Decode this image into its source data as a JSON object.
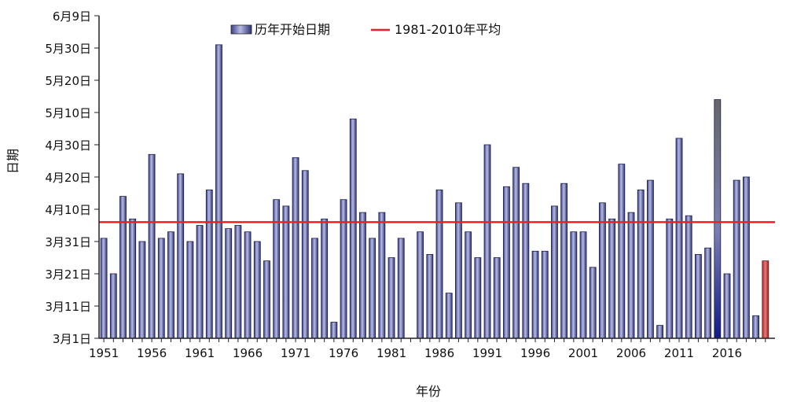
{
  "chart_data": {
    "type": "bar",
    "title": "",
    "xlabel": "年份",
    "ylabel": "日期",
    "legend": {
      "placement": "top-center",
      "bar_label": "历年开始日期",
      "line_label": "1981-2010年平均"
    },
    "y_tick_labels": [
      "3月1日",
      "3月11日",
      "3月21日",
      "3月31日",
      "4月10日",
      "4月20日",
      "4月30日",
      "5月10日",
      "5月20日",
      "5月30日",
      "6月9日"
    ],
    "x_tick_labels": [
      "1951",
      "1956",
      "1961",
      "1966",
      "1971",
      "1976",
      "1981",
      "1986",
      "1991",
      "1996",
      "2001",
      "2006",
      "2011",
      "2016"
    ],
    "ylim": [
      0,
      100
    ],
    "y_unit": "days since 3月1日",
    "years": [
      1951,
      1952,
      1953,
      1954,
      1955,
      1956,
      1957,
      1958,
      1959,
      1960,
      1961,
      1962,
      1963,
      1964,
      1965,
      1966,
      1967,
      1968,
      1969,
      1970,
      1971,
      1972,
      1973,
      1974,
      1975,
      1976,
      1977,
      1978,
      1979,
      1980,
      1981,
      1982,
      1983,
      1984,
      1985,
      1986,
      1987,
      1988,
      1989,
      1990,
      1991,
      1992,
      1993,
      1994,
      1995,
      1996,
      1997,
      1998,
      1999,
      2000,
      2001,
      2002,
      2003,
      2004,
      2005,
      2006,
      2007,
      2008,
      2009,
      2010,
      2011,
      2012,
      2013,
      2014,
      2015,
      2016,
      2017,
      2018,
      2019,
      2020
    ],
    "values": [
      31,
      20,
      44,
      37,
      30,
      57,
      31,
      33,
      51,
      30,
      35,
      46,
      91,
      34,
      35,
      33,
      30,
      24,
      43,
      41,
      56,
      52,
      31,
      37,
      5,
      43,
      68,
      39,
      31,
      39,
      25,
      31,
      0,
      33,
      26,
      46,
      14,
      42,
      33,
      25,
      60,
      25,
      47,
      53,
      48,
      27,
      27,
      41,
      48,
      33,
      33,
      22,
      42,
      37,
      54,
      39,
      46,
      49,
      4,
      37,
      62,
      38,
      26,
      28,
      74,
      20,
      49,
      50,
      7,
      24
    ],
    "average": 36,
    "colors": {
      "bar": "#3a3f8c",
      "bar_light": "#b9bde0",
      "last_bar": "#d24a4a",
      "special_bar": "#555566",
      "average_line": "#e8202a",
      "axis": "#222222"
    }
  }
}
